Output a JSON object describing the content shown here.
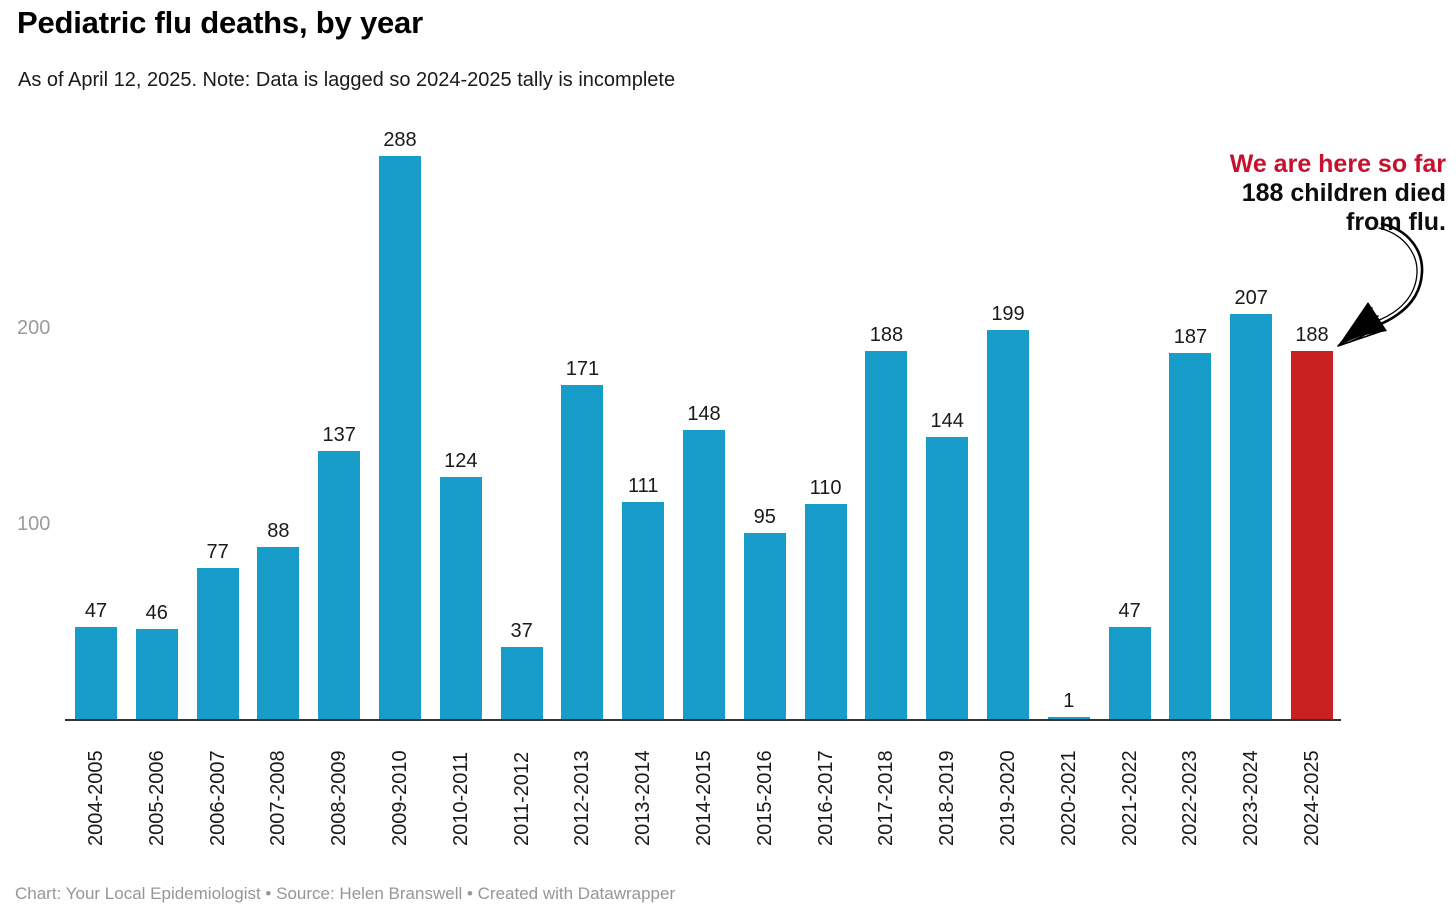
{
  "header": {
    "title": "Pediatric flu deaths, by year",
    "subtitle": "As of April 12, 2025. Note: Data is lagged so 2024-2025 tally is incomplete"
  },
  "annotation": {
    "line1": "We are here so far",
    "line2": "188 children died",
    "line3": "from flu.",
    "arrow_icon": "hand-drawn-curved-arrow"
  },
  "footer": {
    "text": "Chart: Your Local Epidemiologist • Source: Helen Branswell • Created with Datawrapper"
  },
  "colors": {
    "bar": "#189dca",
    "bar_highlight": "#c8211f",
    "annotation_red": "#c6112e",
    "axis_line": "#333333",
    "y_tick_label": "#9b9b9b",
    "value_label": "#1a1a1a",
    "x_tick_label": "#1a1a1a"
  },
  "chart_data": {
    "type": "bar",
    "title": "Pediatric flu deaths, by year",
    "categories": [
      "2004-2005",
      "2005-2006",
      "2006-2007",
      "2007-2008",
      "2008-2009",
      "2009-2010",
      "2010-2011",
      "2011-2012",
      "2012-2013",
      "2013-2014",
      "2014-2015",
      "2015-2016",
      "2016-2017",
      "2017-2018",
      "2018-2019",
      "2019-2020",
      "2020-2021",
      "2021-2022",
      "2022-2023",
      "2023-2024",
      "2024-2025"
    ],
    "values": [
      47,
      46,
      77,
      88,
      137,
      288,
      124,
      37,
      171,
      111,
      148,
      95,
      110,
      188,
      144,
      199,
      1,
      47,
      187,
      207,
      188
    ],
    "highlight_category": "2024-2025",
    "highlight_value": 188,
    "xlabel": "",
    "ylabel": "",
    "yticks": [
      100,
      200
    ],
    "ylim": [
      0,
      295
    ],
    "grid": "off",
    "value_labels": "on",
    "x_label_rotation": -90,
    "legend": "none"
  }
}
